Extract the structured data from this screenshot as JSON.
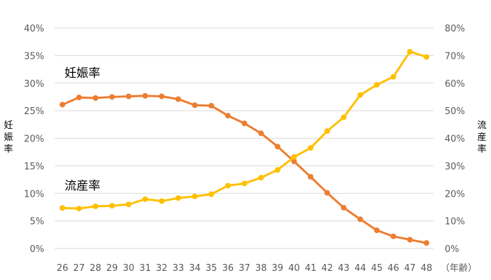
{
  "chart_data": {
    "type": "line",
    "x": [
      26,
      27,
      28,
      29,
      30,
      31,
      32,
      33,
      34,
      35,
      36,
      37,
      38,
      39,
      40,
      41,
      42,
      43,
      44,
      45,
      46,
      47,
      48
    ],
    "x_unit_label": "（年齢）",
    "left_axis": {
      "label": "妊娠率",
      "ylim": [
        0,
        40
      ],
      "ticks": [
        "0%",
        "5%",
        "10%",
        "15%",
        "20%",
        "25%",
        "30%",
        "35%",
        "40%"
      ]
    },
    "right_axis": {
      "label": "流産率",
      "ylim": [
        0,
        80
      ],
      "ticks": [
        "0%",
        "10%",
        "20%",
        "30%",
        "40%",
        "50%",
        "60%",
        "70%",
        "80%"
      ]
    },
    "grid": true,
    "series": [
      {
        "name": "妊娠率",
        "axis": "left",
        "color": "#ED7D31",
        "values": [
          26.1,
          27.4,
          27.3,
          27.5,
          27.6,
          27.7,
          27.6,
          27.1,
          26.0,
          25.9,
          24.1,
          22.7,
          20.9,
          18.5,
          15.8,
          13.0,
          10.1,
          7.4,
          5.3,
          3.3,
          2.2,
          1.6,
          1.0
        ]
      },
      {
        "name": "流産率",
        "axis": "right",
        "color": "#FFC000",
        "values": [
          14.7,
          14.5,
          15.3,
          15.5,
          16.0,
          17.9,
          17.2,
          18.3,
          18.9,
          19.7,
          22.8,
          23.6,
          25.7,
          28.5,
          33.2,
          36.5,
          42.6,
          47.6,
          55.7,
          59.4,
          62.3,
          71.4,
          69.5
        ]
      }
    ]
  }
}
